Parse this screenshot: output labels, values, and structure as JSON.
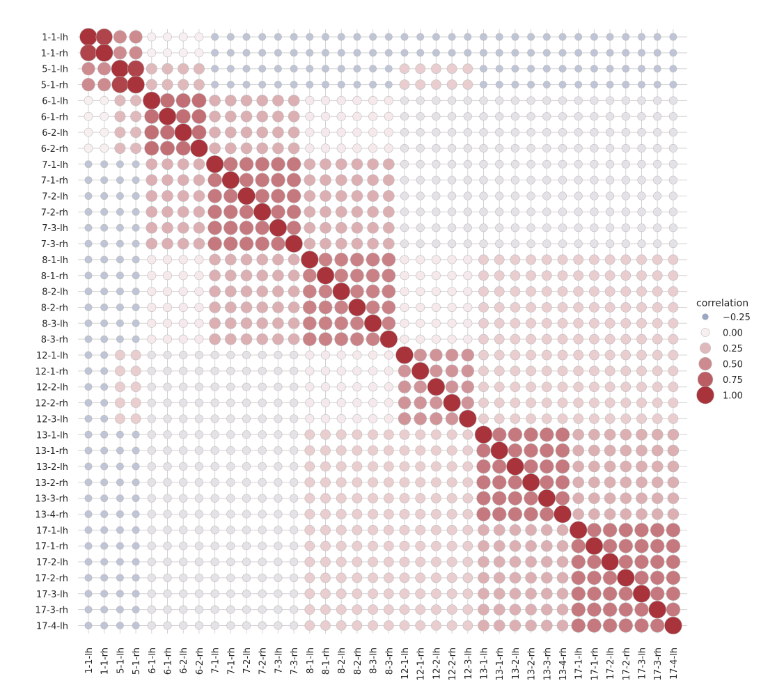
{
  "chart_data": {
    "type": "heatmap",
    "subtype": "correlation-dot-matrix",
    "labels": [
      "1-1-lh",
      "1-1-rh",
      "5-1-lh",
      "5-1-rh",
      "6-1-lh",
      "6-1-rh",
      "6-2-lh",
      "6-2-rh",
      "7-1-lh",
      "7-1-rh",
      "7-2-lh",
      "7-2-rh",
      "7-3-lh",
      "7-3-rh",
      "8-1-lh",
      "8-1-rh",
      "8-2-lh",
      "8-2-rh",
      "8-3-lh",
      "8-3-rh",
      "12-1-lh",
      "12-1-rh",
      "12-2-lh",
      "12-2-rh",
      "12-3-lh",
      "13-1-lh",
      "13-1-rh",
      "13-2-lh",
      "13-2-rh",
      "13-3-rh",
      "13-4-rh",
      "17-1-lh",
      "17-1-rh",
      "17-2-lh",
      "17-2-rh",
      "17-3-lh",
      "17-3-rh",
      "17-4-lh"
    ],
    "groups": [
      {
        "start": 0,
        "end": 1,
        "within": 0.9
      },
      {
        "start": 2,
        "end": 3,
        "within": 0.9
      },
      {
        "start": 4,
        "end": 7,
        "within": 0.65
      },
      {
        "start": 8,
        "end": 13,
        "within": 0.6
      },
      {
        "start": 14,
        "end": 19,
        "within": 0.55
      },
      {
        "start": 20,
        "end": 24,
        "within": 0.45
      },
      {
        "start": 25,
        "end": 30,
        "within": 0.6
      },
      {
        "start": 31,
        "end": 37,
        "within": 0.6
      }
    ],
    "block_values": [
      {
        "rows": [
          0,
          3
        ],
        "cols": [
          0,
          3
        ],
        "value": 0.5
      },
      {
        "rows": [
          2,
          3
        ],
        "cols": [
          4,
          7
        ],
        "value": 0.25
      },
      {
        "rows": [
          0,
          1
        ],
        "cols": [
          4,
          7
        ],
        "value": 0.0
      },
      {
        "rows": [
          4,
          7
        ],
        "cols": [
          8,
          13
        ],
        "value": 0.3
      },
      {
        "rows": [
          8,
          13
        ],
        "cols": [
          14,
          19
        ],
        "value": 0.3
      },
      {
        "rows": [
          0,
          3
        ],
        "cols": [
          8,
          37
        ],
        "value": -0.15
      },
      {
        "rows": [
          4,
          13
        ],
        "cols": [
          20,
          37
        ],
        "value": -0.05
      },
      {
        "rows": [
          14,
          19
        ],
        "cols": [
          25,
          37
        ],
        "value": 0.15
      },
      {
        "rows": [
          20,
          24
        ],
        "cols": [
          25,
          37
        ],
        "value": 0.15
      },
      {
        "rows": [
          25,
          30
        ],
        "cols": [
          31,
          37
        ],
        "value": 0.3
      },
      {
        "rows": [
          2,
          3
        ],
        "cols": [
          20,
          24
        ],
        "value": 0.15
      }
    ],
    "legend": {
      "title": "correlation",
      "placement": "right",
      "entries": [
        {
          "label": "−0.25",
          "value": -0.25
        },
        {
          "label": "0.00",
          "value": 0.0
        },
        {
          "label": "0.25",
          "value": 0.25
        },
        {
          "label": "0.50",
          "value": 0.5
        },
        {
          "label": "0.75",
          "value": 0.75
        },
        {
          "label": "1.00",
          "value": 1.0
        }
      ]
    },
    "value_range": [
      -0.25,
      1.0
    ],
    "grid": true,
    "title": "",
    "xlabel": "",
    "ylabel": ""
  },
  "colors": {
    "negative": "#9aa7c4",
    "zero": "#f7eff0",
    "positive": "#a8333b",
    "grid": "#d3d3d3",
    "edge": "#bdbdbd"
  }
}
